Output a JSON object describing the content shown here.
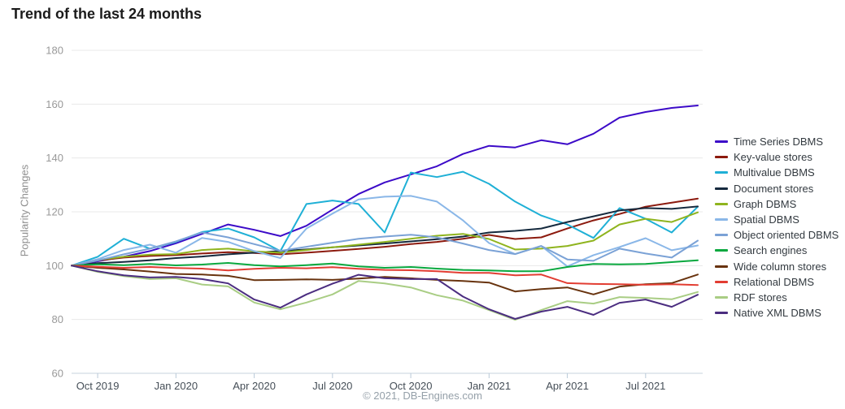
{
  "title": "Trend of the last 24 months",
  "footer": "© 2021, DB-Engines.com",
  "ui_colors": {
    "background": "#ffffff",
    "title_text": "#1b1b1b",
    "gridline": "#e8e8e8",
    "axis_line": "#c7d3dd",
    "tick_mark": "#b9c9d8",
    "y_tick_label": "#999999",
    "x_tick_label": "#454e57",
    "legend_text": "#333a40",
    "footer_text": "#95a0a9"
  },
  "chart_data": {
    "type": "line",
    "title": "Trend of the last 24 months",
    "xlabel": "",
    "ylabel": "Popularity Changes",
    "ylim": [
      60,
      180
    ],
    "grid": true,
    "legend_position": "right",
    "y_ticks": [
      60,
      80,
      100,
      120,
      140,
      160,
      180
    ],
    "x_tick_labels": [
      "Oct 2019",
      "Jan 2020",
      "Apr 2020",
      "Jul 2020",
      "Oct 2020",
      "Jan 2021",
      "Apr 2021",
      "Jul 2021"
    ],
    "x_tick_indices": [
      1,
      4,
      7,
      10,
      13,
      16,
      19,
      22
    ],
    "x_months": [
      "Sep 2019",
      "Oct 2019",
      "Nov 2019",
      "Dec 2019",
      "Jan 2020",
      "Feb 2020",
      "Mar 2020",
      "Apr 2020",
      "May 2020",
      "Jun 2020",
      "Jul 2020",
      "Aug 2020",
      "Sep 2020",
      "Oct 2020",
      "Nov 2020",
      "Dec 2020",
      "Jan 2021",
      "Feb 2021",
      "Mar 2021",
      "Apr 2021",
      "May 2021",
      "Jun 2021",
      "Jul 2021",
      "Aug 2021",
      "Sep 2021"
    ],
    "series": [
      {
        "name": "Time Series DBMS",
        "color": "#3c0ac8",
        "values": [
          100,
          101.6,
          103.3,
          105.4,
          108.3,
          111.8,
          115.3,
          113.3,
          111,
          114.8,
          120.8,
          126.6,
          130.9,
          133.9,
          136.9,
          141.5,
          144.5,
          143.9,
          146.6,
          145.1,
          149,
          155,
          157.1,
          158.6,
          159.5
        ]
      },
      {
        "name": "Key-value stores",
        "color": "#8c1a0e",
        "values": [
          100,
          101.9,
          103,
          103.6,
          103.9,
          104.5,
          105,
          104.7,
          104.2,
          104.8,
          105.5,
          106.2,
          107,
          108,
          108.8,
          110,
          111.4,
          109.9,
          110.5,
          113.8,
          116.8,
          119.2,
          121.9,
          123.4,
          124.9
        ]
      },
      {
        "name": "Multivalue DBMS",
        "color": "#1fb0d6",
        "values": [
          100,
          103.3,
          110,
          106.3,
          108.8,
          112.5,
          113.8,
          110.5,
          105.4,
          122.9,
          124.2,
          122.9,
          112.3,
          134.6,
          132.9,
          134.9,
          130.4,
          123.8,
          118.6,
          115.3,
          110.3,
          121.4,
          117.4,
          112.3,
          121.9
        ]
      },
      {
        "name": "Document stores",
        "color": "#152a3e",
        "values": [
          100,
          100.9,
          101.4,
          102,
          102.8,
          103.4,
          104.2,
          104.8,
          105.4,
          106,
          106.8,
          107.5,
          108.2,
          109,
          109.8,
          110.8,
          112.3,
          112.9,
          113.8,
          116.2,
          118.3,
          120.5,
          121.4,
          121.1,
          122
        ]
      },
      {
        "name": "Graph DBMS",
        "color": "#8fb41e",
        "values": [
          100,
          102.1,
          103.3,
          104.1,
          104.3,
          105.8,
          106.3,
          105.3,
          104.8,
          105.8,
          106.8,
          107.8,
          108.8,
          110,
          111.1,
          111.8,
          109.9,
          106,
          106.3,
          107.3,
          109.3,
          115.3,
          117.4,
          116.2,
          119.8
        ]
      },
      {
        "name": "Spatial DBMS",
        "color": "#8ab7e8",
        "values": [
          100,
          102.4,
          105.8,
          107.8,
          104.8,
          110.3,
          108.8,
          105.4,
          102.8,
          113.8,
          119.3,
          124.6,
          125.6,
          125.9,
          123.8,
          116.8,
          108.4,
          104.3,
          107.3,
          99.7,
          103.9,
          106.9,
          110.2,
          105.7,
          107.5
        ]
      },
      {
        "name": "Object oriented DBMS",
        "color": "#7ba2d6",
        "values": [
          100,
          101.9,
          104.2,
          106.3,
          109,
          112.3,
          110.5,
          108,
          105.5,
          107,
          108.5,
          110,
          110.8,
          111.5,
          110.5,
          108.2,
          105.8,
          104.3,
          107.3,
          102.3,
          101.8,
          106.3,
          104.5,
          103,
          109.3
        ]
      },
      {
        "name": "Search engines",
        "color": "#0aa83f",
        "values": [
          100,
          100.5,
          100.2,
          100.6,
          100.1,
          100.4,
          101,
          100.2,
          99.7,
          100.2,
          100.8,
          99.7,
          99.2,
          99.5,
          98.9,
          98.4,
          98.2,
          97.9,
          97.9,
          99.5,
          100.6,
          100.5,
          100.6,
          101.3,
          102
        ]
      },
      {
        "name": "Wide column stores",
        "color": "#68330e",
        "values": [
          100,
          99.2,
          98.6,
          97.8,
          96.9,
          96.7,
          96.2,
          94.6,
          94.7,
          94.9,
          94.7,
          95.2,
          95.8,
          95.3,
          94.7,
          94.3,
          93.7,
          90.4,
          91.3,
          91.9,
          89.3,
          92.2,
          93.1,
          93.5,
          96.7
        ]
      },
      {
        "name": "Relational DBMS",
        "color": "#e23d32",
        "values": [
          100,
          99.6,
          99.2,
          99.5,
          99.1,
          98.9,
          98.2,
          98.8,
          99.2,
          99,
          99.4,
          98.8,
          98.4,
          98.3,
          97.9,
          97.3,
          97.3,
          96.4,
          96.7,
          93.5,
          93.2,
          93.1,
          92.9,
          93.1,
          92.8
        ]
      },
      {
        "name": "RDF stores",
        "color": "#a9cd84",
        "values": [
          100,
          97.7,
          96.1,
          95,
          95.3,
          93,
          92.3,
          86.3,
          83.8,
          86.3,
          89.3,
          94.3,
          93.4,
          91.9,
          89,
          87,
          83.5,
          79.9,
          83.5,
          86.8,
          85.9,
          88.3,
          88,
          87.5,
          90.2
        ]
      },
      {
        "name": "Native XML DBMS",
        "color": "#4b2d80",
        "values": [
          100,
          97.9,
          96.4,
          95.6,
          95.8,
          95,
          93.4,
          87.4,
          84.4,
          89.3,
          93.3,
          96.6,
          95.3,
          95,
          95,
          88.5,
          83.8,
          80.2,
          82.9,
          84.7,
          81.7,
          86.2,
          87.4,
          84.7,
          89.2
        ]
      }
    ]
  }
}
